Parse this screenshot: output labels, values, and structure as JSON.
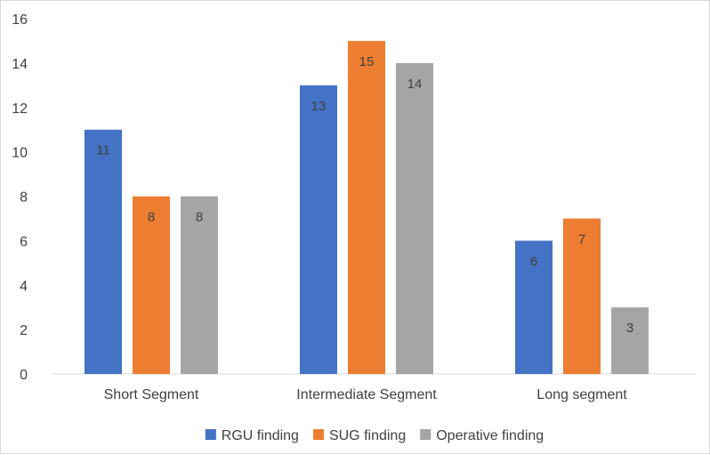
{
  "chart_data": {
    "type": "bar",
    "title": "",
    "xlabel": "",
    "ylabel": "",
    "categories": [
      "Short Segment",
      "Intermediate Segment",
      "Long segment"
    ],
    "series": [
      {
        "name": "RGU finding",
        "color": "#4472c4",
        "values": [
          11,
          13,
          6
        ]
      },
      {
        "name": "SUG finding",
        "color": "#ed7d31",
        "values": [
          8,
          15,
          7
        ]
      },
      {
        "name": "Operative finding",
        "color": "#a5a5a5",
        "values": [
          8,
          14,
          3
        ]
      }
    ],
    "ylim": [
      0,
      16
    ],
    "yticks": [
      0,
      2,
      4,
      6,
      8,
      10,
      12,
      14,
      16
    ],
    "grid": false,
    "legend_position": "bottom",
    "data_labels": true
  }
}
